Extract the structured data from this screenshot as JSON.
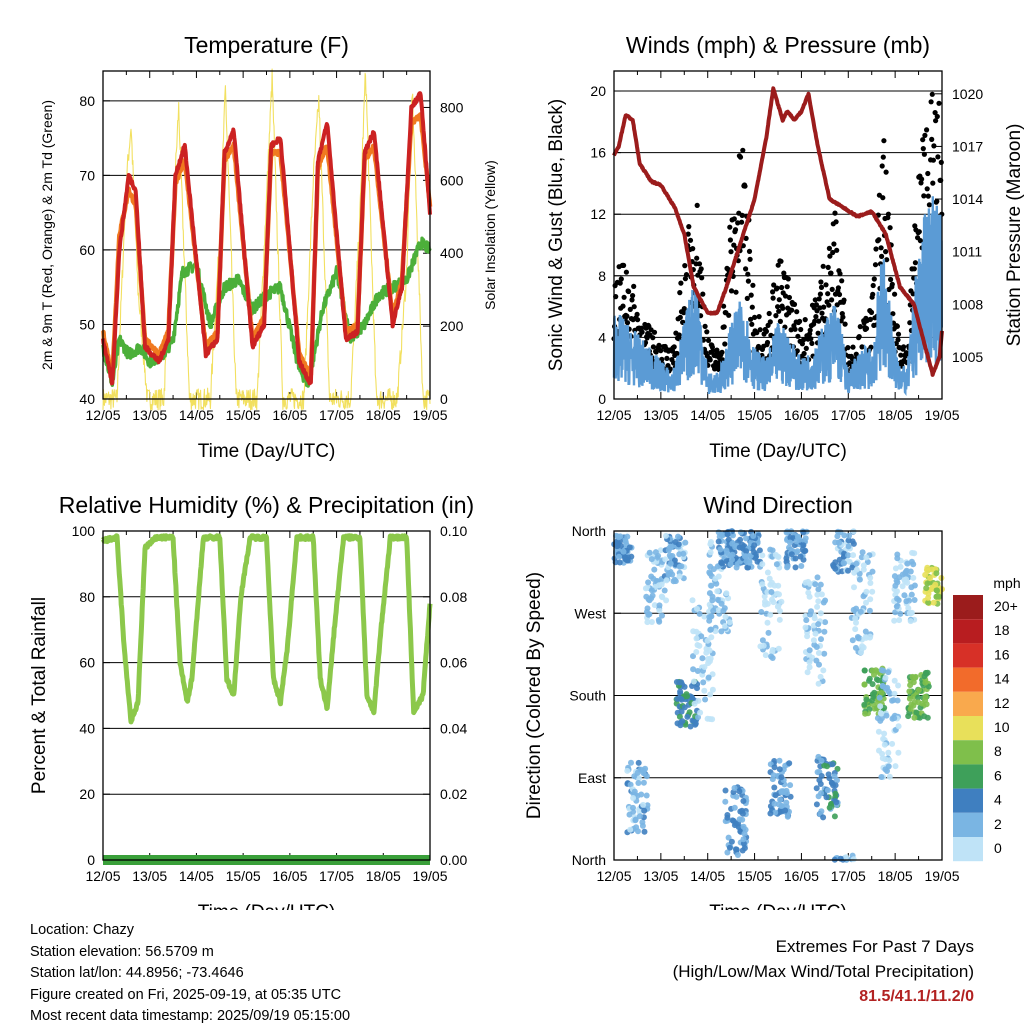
{
  "chart_data": [
    {
      "type": "line",
      "title": "Temperature (F)",
      "xlabel": "Time (Day/UTC)",
      "ylabel_left": "2m & 9m T (Red, Orange) & 2m Td (Green)",
      "ylabel_right": "Solar Insolation (Yellow)",
      "x_ticks": [
        "12/05",
        "13/05",
        "14/05",
        "15/05",
        "16/05",
        "17/05",
        "18/05",
        "19/05"
      ],
      "ylim_left": [
        40,
        84
      ],
      "y_ticks_left": [
        40,
        50,
        60,
        70,
        80
      ],
      "ylim_right": [
        0,
        900
      ],
      "y_ticks_right": [
        0,
        200,
        400,
        600,
        800
      ],
      "grid": true,
      "colors": {
        "t2m": "#cc2222",
        "t9m": "#f07a20",
        "td2m": "#4caf3a",
        "solar": "#f2e060"
      },
      "series": [
        {
          "name": "2m T",
          "x_days": [
            0,
            0.2,
            0.35,
            0.55,
            0.7,
            0.9,
            1.2,
            1.4,
            1.55,
            1.75,
            2.2,
            2.45,
            2.6,
            2.8,
            3.2,
            3.45,
            3.6,
            3.8,
            4.2,
            4.45,
            4.6,
            4.8,
            5.2,
            5.45,
            5.6,
            5.8,
            6.2,
            6.4,
            6.6,
            6.8,
            7.0
          ],
          "values": [
            48,
            42,
            60,
            70,
            68,
            47,
            45,
            48,
            70,
            74,
            46,
            48,
            73,
            76,
            47,
            50,
            74,
            75,
            45,
            42,
            72,
            77,
            48,
            49,
            73,
            76,
            50,
            55,
            79,
            81,
            65
          ]
        },
        {
          "name": "9m T",
          "x_days": [
            0,
            0.2,
            0.35,
            0.55,
            0.7,
            0.9,
            1.2,
            1.4,
            1.55,
            1.75,
            2.2,
            2.45,
            2.6,
            2.8,
            3.2,
            3.45,
            3.6,
            3.8,
            4.2,
            4.45,
            4.6,
            4.8,
            5.2,
            5.45,
            5.6,
            5.8,
            6.2,
            6.4,
            6.6,
            6.8,
            7.0
          ],
          "values": [
            49,
            43,
            62,
            68,
            66,
            48,
            46,
            49,
            69,
            72,
            47,
            49,
            72,
            74,
            48,
            51,
            73,
            73,
            46,
            43,
            71,
            74,
            49,
            50,
            72,
            74,
            51,
            56,
            77,
            78,
            66
          ]
        },
        {
          "name": "2m Td",
          "x_days": [
            0,
            0.2,
            0.35,
            0.55,
            0.8,
            1.0,
            1.3,
            1.5,
            1.7,
            2.0,
            2.3,
            2.6,
            2.9,
            3.2,
            3.5,
            3.8,
            4.2,
            4.4,
            4.7,
            5.0,
            5.3,
            5.6,
            5.9,
            6.2,
            6.5,
            6.8,
            7.0
          ],
          "values": [
            47,
            42,
            48,
            46,
            47,
            45,
            46,
            48,
            57,
            58,
            50,
            55,
            56,
            52,
            54,
            55,
            44,
            42,
            52,
            57,
            48,
            50,
            54,
            55,
            56,
            61,
            60
          ]
        },
        {
          "name": "Solar",
          "x_days": [
            0,
            0.3,
            0.5,
            0.6,
            0.75,
            0.95,
            1.3,
            1.5,
            1.62,
            1.85,
            2.3,
            2.5,
            2.62,
            2.85,
            3.3,
            3.5,
            3.62,
            3.85,
            4.3,
            4.5,
            4.62,
            4.85,
            5.3,
            5.5,
            5.62,
            5.85,
            6.3,
            6.5,
            6.62,
            6.85,
            7.0
          ],
          "values": [
            0,
            0,
            600,
            750,
            300,
            0,
            0,
            500,
            800,
            0,
            0,
            450,
            850,
            0,
            0,
            550,
            880,
            0,
            0,
            600,
            820,
            0,
            0,
            500,
            900,
            0,
            0,
            350,
            850,
            0,
            0
          ]
        }
      ]
    },
    {
      "type": "line",
      "title": "Winds (mph) & Pressure (mb)",
      "xlabel": "Time (Day/UTC)",
      "ylabel_left": "Sonic Wind & Gust (Blue, Black)",
      "ylabel_right": "Station Pressure (Maroon)",
      "x_ticks": [
        "12/05",
        "13/05",
        "14/05",
        "15/05",
        "16/05",
        "17/05",
        "18/05",
        "19/05"
      ],
      "ylim_left": [
        0,
        21.3
      ],
      "y_ticks_left": [
        0,
        4,
        8,
        12,
        16,
        20
      ],
      "ylim_right": [
        1002.6,
        1021.3
      ],
      "y_ticks_right": [
        1005,
        1008,
        1011,
        1014,
        1017,
        1020
      ],
      "grid": true,
      "colors": {
        "wind": "#5b9bd5",
        "gust": "#000000",
        "pressure": "#9b1c1c"
      },
      "series": [
        {
          "name": "Sonic Wind",
          "x_days": [
            0,
            0.25,
            0.5,
            0.75,
            1.0,
            1.25,
            1.5,
            1.75,
            2.0,
            2.25,
            2.5,
            2.75,
            3.0,
            3.25,
            3.5,
            3.75,
            4.0,
            4.25,
            4.5,
            4.75,
            5.0,
            5.25,
            5.5,
            5.75,
            6.0,
            6.25,
            6.5,
            6.75,
            7.0
          ],
          "values": [
            3.5,
            3,
            2.5,
            2,
            1.5,
            1,
            3,
            5,
            1,
            1,
            3,
            4,
            2,
            1.5,
            3,
            2.5,
            1.5,
            2,
            3,
            4,
            1,
            2,
            2,
            6,
            2,
            1,
            6,
            8,
            7
          ]
        },
        {
          "name": "Gust",
          "x_days": [
            0,
            0.25,
            0.5,
            0.75,
            1.0,
            1.25,
            1.5,
            1.75,
            2.0,
            2.25,
            2.5,
            2.75,
            3.0,
            3.25,
            3.5,
            3.75,
            4.0,
            4.25,
            4.5,
            4.75,
            5.0,
            5.25,
            5.5,
            5.75,
            6.0,
            6.25,
            6.5,
            6.75,
            7.0
          ],
          "values": [
            5,
            6,
            4,
            3,
            2.5,
            2,
            6,
            9,
            2.5,
            2,
            8,
            11,
            4,
            3,
            6,
            5,
            3,
            4,
            6,
            8,
            2,
            3,
            4,
            11,
            4,
            2,
            10,
            13,
            12
          ]
        },
        {
          "name": "Station Pressure",
          "x_days": [
            0,
            0.1,
            0.25,
            0.4,
            0.55,
            0.8,
            1.0,
            1.3,
            1.5,
            1.7,
            1.9,
            2.0,
            2.2,
            2.4,
            2.7,
            3.0,
            3.25,
            3.4,
            3.6,
            3.7,
            3.85,
            4.0,
            4.15,
            4.35,
            4.6,
            4.9,
            5.2,
            5.5,
            5.8,
            6.1,
            6.4,
            6.6,
            6.8,
            6.95,
            7.0
          ],
          "values": [
            1016.5,
            1017,
            1018.8,
            1018.5,
            1016,
            1015,
            1014.8,
            1013.5,
            1012,
            1009,
            1008,
            1007.5,
            1007.5,
            1009,
            1011.5,
            1014,
            1017.5,
            1020.3,
            1018.5,
            1019,
            1018.5,
            1019,
            1020,
            1017,
            1014,
            1013.5,
            1013,
            1013.3,
            1012,
            1009,
            1008,
            1006,
            1004,
            1005,
            1006.5
          ]
        }
      ]
    },
    {
      "type": "line",
      "title": "Relative Humidity (%) & Precipitation (in)",
      "xlabel": "Time (Day/UTC)",
      "ylabel_left": "Percent & Total Rainfall",
      "x_ticks": [
        "12/05",
        "13/05",
        "14/05",
        "15/05",
        "16/05",
        "17/05",
        "18/05",
        "19/05"
      ],
      "ylim_left": [
        0,
        100
      ],
      "y_ticks_left": [
        0,
        20,
        40,
        60,
        80,
        100
      ],
      "ylim_right": [
        0,
        0.1
      ],
      "y_ticks_right": [
        "0.00",
        "0.02",
        "0.04",
        "0.06",
        "0.08",
        "0.10"
      ],
      "grid": true,
      "colors": {
        "rh": "#8cc84b",
        "precip": "#3aa03a"
      },
      "series": [
        {
          "name": "Relative Humidity",
          "x_days": [
            0,
            0.3,
            0.45,
            0.6,
            0.75,
            0.9,
            1.15,
            1.5,
            1.65,
            1.8,
            1.9,
            2.15,
            2.5,
            2.65,
            2.8,
            2.95,
            3.15,
            3.5,
            3.65,
            3.8,
            3.95,
            4.15,
            4.5,
            4.65,
            4.8,
            4.95,
            5.15,
            5.5,
            5.65,
            5.8,
            5.95,
            6.15,
            6.5,
            6.65,
            6.85,
            7.0
          ],
          "values": [
            97,
            98,
            65,
            42,
            48,
            95,
            98,
            98,
            60,
            48,
            55,
            98,
            98,
            55,
            50,
            80,
            98,
            98,
            55,
            48,
            65,
            98,
            98,
            55,
            46,
            70,
            98,
            98,
            50,
            45,
            70,
            98,
            98,
            45,
            50,
            78
          ]
        },
        {
          "name": "Total Precipitation",
          "x_days": [
            0,
            7
          ],
          "values": [
            0,
            0
          ]
        }
      ]
    },
    {
      "type": "scatter",
      "title": "Wind Direction",
      "xlabel": "Time (Day/UTC)",
      "ylabel": "Direction (Colored By Speed)",
      "x_ticks": [
        "12/05",
        "13/05",
        "14/05",
        "15/05",
        "16/05",
        "17/05",
        "18/05",
        "19/05"
      ],
      "y_ticks": [
        "North",
        "East",
        "South",
        "West",
        "North"
      ],
      "y_tick_values": [
        0,
        90,
        180,
        270,
        360
      ],
      "grid": true,
      "legend": {
        "title": "mph",
        "placement": "right",
        "labels": [
          "20+",
          "18",
          "16",
          "14",
          "12",
          "10",
          "8",
          "6",
          "4",
          "2",
          "0"
        ],
        "colors": [
          "#9b1c1c",
          "#b81d20",
          "#d73027",
          "#f26b2b",
          "#f9a94d",
          "#e8e05a",
          "#7fbf4b",
          "#3ea05a",
          "#3f7fc0",
          "#7ab5e3",
          "#bfe3f7"
        ]
      },
      "clusters": [
        {
          "day": 0.15,
          "dir": 340,
          "spread": 15,
          "speed": 3
        },
        {
          "day": 0.5,
          "dir": 70,
          "spread": 40,
          "speed": 2
        },
        {
          "day": 0.9,
          "dir": 300,
          "spread": 40,
          "speed": 1
        },
        {
          "day": 1.3,
          "dir": 330,
          "spread": 25,
          "speed": 2
        },
        {
          "day": 1.55,
          "dir": 170,
          "spread": 25,
          "speed": 5
        },
        {
          "day": 1.9,
          "dir": 220,
          "spread": 70,
          "speed": 1
        },
        {
          "day": 2.25,
          "dir": 300,
          "spread": 50,
          "speed": 1
        },
        {
          "day": 2.45,
          "dir": 340,
          "spread": 20,
          "speed": 3
        },
        {
          "day": 2.6,
          "dir": 40,
          "spread": 40,
          "speed": 3
        },
        {
          "day": 2.9,
          "dir": 340,
          "spread": 20,
          "speed": 3
        },
        {
          "day": 3.35,
          "dir": 280,
          "spread": 60,
          "speed": 1
        },
        {
          "day": 3.55,
          "dir": 80,
          "spread": 35,
          "speed": 3
        },
        {
          "day": 3.9,
          "dir": 340,
          "spread": 20,
          "speed": 3
        },
        {
          "day": 4.3,
          "dir": 250,
          "spread": 60,
          "speed": 1
        },
        {
          "day": 4.55,
          "dir": 80,
          "spread": 35,
          "speed": 4
        },
        {
          "day": 4.9,
          "dir": 340,
          "spread": 25,
          "speed": 2
        },
        {
          "day": 5.3,
          "dir": 280,
          "spread": 60,
          "speed": 1
        },
        {
          "day": 5.55,
          "dir": 185,
          "spread": 25,
          "speed": 7
        },
        {
          "day": 5.85,
          "dir": 150,
          "spread": 60,
          "speed": 1
        },
        {
          "day": 6.2,
          "dir": 300,
          "spread": 40,
          "speed": 1
        },
        {
          "day": 6.5,
          "dir": 180,
          "spread": 25,
          "speed": 7
        },
        {
          "day": 6.85,
          "dir": 300,
          "spread": 20,
          "speed": 9
        }
      ]
    }
  ],
  "info": {
    "location": "Location: Chazy",
    "elevation": "Station elevation: 56.5709 m",
    "latlon": "Station lat/lon: 44.8956; -73.4646",
    "created": "Figure created on Fri, 2025-09-19, at 05:35 UTC",
    "recent": "Most recent data timestamp: 2025/09/19 05:15:00"
  },
  "extremes": {
    "title": "Extremes For Past 7 Days",
    "subtitle": "(High/Low/Max Wind/Total Precipitation)",
    "values": "81.5/41.1/11.2/0"
  }
}
